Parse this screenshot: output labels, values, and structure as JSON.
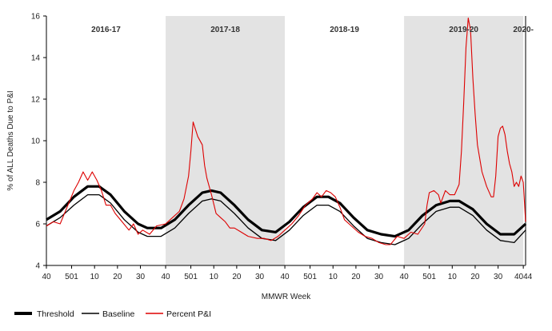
{
  "chart_data": {
    "type": "line",
    "xlabel": "MMWR Week",
    "ylabel": "% of ALL Deaths Due to P&I",
    "ylim": [
      4,
      16
    ],
    "yticks": [
      4,
      6,
      8,
      10,
      12,
      14,
      16
    ],
    "x_range_weeks": [
      0,
      209
    ],
    "season_labels": [
      {
        "label": "2016-17",
        "center_week": 26
      },
      {
        "label": "2017-18",
        "center_week": 78
      },
      {
        "label": "2018-19",
        "center_week": 130
      },
      {
        "label": "2019-20",
        "center_week": 182
      },
      {
        "label": "2020-",
        "center_week": 208
      }
    ],
    "shaded_weeks": [
      [
        52,
        104
      ],
      [
        156,
        208
      ]
    ],
    "xticks": [
      {
        "week": 0,
        "label": "40"
      },
      {
        "week": 11,
        "label": "501"
      },
      {
        "week": 21,
        "label": "10"
      },
      {
        "week": 31,
        "label": "20"
      },
      {
        "week": 41,
        "label": "30"
      },
      {
        "week": 52,
        "label": "40"
      },
      {
        "week": 63,
        "label": "501"
      },
      {
        "week": 73,
        "label": "10"
      },
      {
        "week": 83,
        "label": "20"
      },
      {
        "week": 93,
        "label": "30"
      },
      {
        "week": 104,
        "label": "40"
      },
      {
        "week": 115,
        "label": "501"
      },
      {
        "week": 125,
        "label": "10"
      },
      {
        "week": 135,
        "label": "20"
      },
      {
        "week": 145,
        "label": "30"
      },
      {
        "week": 156,
        "label": "40"
      },
      {
        "week": 167,
        "label": "501"
      },
      {
        "week": 177,
        "label": "10"
      },
      {
        "week": 187,
        "label": "20"
      },
      {
        "week": 197,
        "label": "30"
      },
      {
        "week": 208,
        "label": "4044"
      }
    ],
    "series": [
      {
        "name": "Threshold",
        "color": "#000000",
        "points": [
          [
            0,
            6.2
          ],
          [
            6,
            6.6
          ],
          [
            12,
            7.3
          ],
          [
            18,
            7.8
          ],
          [
            23,
            7.8
          ],
          [
            28,
            7.4
          ],
          [
            34,
            6.6
          ],
          [
            40,
            6.0
          ],
          [
            44,
            5.8
          ],
          [
            50,
            5.8
          ],
          [
            56,
            6.2
          ],
          [
            62,
            6.9
          ],
          [
            68,
            7.5
          ],
          [
            72,
            7.6
          ],
          [
            76,
            7.5
          ],
          [
            82,
            6.9
          ],
          [
            88,
            6.2
          ],
          [
            94,
            5.7
          ],
          [
            100,
            5.6
          ],
          [
            106,
            6.1
          ],
          [
            112,
            6.8
          ],
          [
            118,
            7.3
          ],
          [
            123,
            7.3
          ],
          [
            128,
            7.0
          ],
          [
            134,
            6.3
          ],
          [
            140,
            5.7
          ],
          [
            146,
            5.5
          ],
          [
            152,
            5.4
          ],
          [
            158,
            5.7
          ],
          [
            164,
            6.4
          ],
          [
            170,
            6.9
          ],
          [
            176,
            7.1
          ],
          [
            180,
            7.1
          ],
          [
            186,
            6.7
          ],
          [
            192,
            6.0
          ],
          [
            198,
            5.5
          ],
          [
            204,
            5.5
          ],
          [
            209,
            6.0
          ]
        ]
      },
      {
        "name": "Baseline",
        "color": "#000000",
        "points": [
          [
            0,
            5.9
          ],
          [
            6,
            6.3
          ],
          [
            12,
            6.9
          ],
          [
            18,
            7.4
          ],
          [
            23,
            7.4
          ],
          [
            28,
            7.0
          ],
          [
            34,
            6.2
          ],
          [
            40,
            5.6
          ],
          [
            44,
            5.4
          ],
          [
            50,
            5.4
          ],
          [
            56,
            5.8
          ],
          [
            62,
            6.5
          ],
          [
            68,
            7.1
          ],
          [
            72,
            7.2
          ],
          [
            76,
            7.1
          ],
          [
            82,
            6.5
          ],
          [
            88,
            5.8
          ],
          [
            94,
            5.3
          ],
          [
            100,
            5.2
          ],
          [
            106,
            5.7
          ],
          [
            112,
            6.4
          ],
          [
            118,
            6.9
          ],
          [
            123,
            6.9
          ],
          [
            128,
            6.6
          ],
          [
            134,
            5.9
          ],
          [
            140,
            5.3
          ],
          [
            146,
            5.1
          ],
          [
            152,
            5.0
          ],
          [
            158,
            5.3
          ],
          [
            164,
            6.0
          ],
          [
            170,
            6.6
          ],
          [
            176,
            6.8
          ],
          [
            180,
            6.8
          ],
          [
            186,
            6.4
          ],
          [
            192,
            5.7
          ],
          [
            198,
            5.2
          ],
          [
            204,
            5.1
          ],
          [
            209,
            5.7
          ]
        ]
      },
      {
        "name": "Percent P&I",
        "color": "#dd0000",
        "points": [
          [
            0,
            5.9
          ],
          [
            3,
            6.1
          ],
          [
            6,
            6.0
          ],
          [
            9,
            6.8
          ],
          [
            12,
            7.6
          ],
          [
            14,
            8.0
          ],
          [
            16,
            8.5
          ],
          [
            18,
            8.1
          ],
          [
            20,
            8.5
          ],
          [
            22,
            8.1
          ],
          [
            24,
            7.6
          ],
          [
            26,
            6.9
          ],
          [
            28,
            6.9
          ],
          [
            30,
            6.5
          ],
          [
            33,
            6.1
          ],
          [
            36,
            5.7
          ],
          [
            38,
            6.0
          ],
          [
            40,
            5.5
          ],
          [
            42,
            5.7
          ],
          [
            45,
            5.5
          ],
          [
            48,
            5.9
          ],
          [
            52,
            6.0
          ],
          [
            55,
            6.3
          ],
          [
            58,
            6.6
          ],
          [
            60,
            7.2
          ],
          [
            62,
            8.3
          ],
          [
            63,
            9.5
          ],
          [
            64,
            10.9
          ],
          [
            66,
            10.2
          ],
          [
            68,
            9.8
          ],
          [
            69,
            8.8
          ],
          [
            70,
            8.2
          ],
          [
            72,
            7.4
          ],
          [
            74,
            6.5
          ],
          [
            76,
            6.3
          ],
          [
            78,
            6.1
          ],
          [
            80,
            5.8
          ],
          [
            82,
            5.8
          ],
          [
            85,
            5.6
          ],
          [
            88,
            5.4
          ],
          [
            92,
            5.3
          ],
          [
            95,
            5.3
          ],
          [
            98,
            5.2
          ],
          [
            101,
            5.4
          ],
          [
            104,
            5.7
          ],
          [
            107,
            6.0
          ],
          [
            110,
            6.4
          ],
          [
            113,
            6.9
          ],
          [
            116,
            7.2
          ],
          [
            118,
            7.5
          ],
          [
            120,
            7.3
          ],
          [
            122,
            7.6
          ],
          [
            124,
            7.5
          ],
          [
            126,
            7.3
          ],
          [
            128,
            6.8
          ],
          [
            130,
            6.2
          ],
          [
            133,
            5.9
          ],
          [
            136,
            5.6
          ],
          [
            139,
            5.4
          ],
          [
            142,
            5.3
          ],
          [
            145,
            5.1
          ],
          [
            148,
            5.0
          ],
          [
            150,
            5.0
          ],
          [
            153,
            5.4
          ],
          [
            156,
            5.3
          ],
          [
            159,
            5.6
          ],
          [
            162,
            5.5
          ],
          [
            165,
            6.0
          ],
          [
            166,
            6.9
          ],
          [
            167,
            7.5
          ],
          [
            169,
            7.6
          ],
          [
            171,
            7.4
          ],
          [
            172,
            7.0
          ],
          [
            174,
            7.6
          ],
          [
            176,
            7.4
          ],
          [
            178,
            7.4
          ],
          [
            180,
            7.9
          ],
          [
            181,
            9.5
          ],
          [
            182,
            11.8
          ],
          [
            183,
            14.5
          ],
          [
            184,
            15.9
          ],
          [
            185,
            15.3
          ],
          [
            186,
            13.0
          ],
          [
            187,
            11.3
          ],
          [
            188,
            9.8
          ],
          [
            190,
            8.5
          ],
          [
            192,
            7.8
          ],
          [
            194,
            7.3
          ],
          [
            195,
            7.3
          ],
          [
            196,
            8.3
          ],
          [
            197,
            10.2
          ],
          [
            198,
            10.6
          ],
          [
            199,
            10.7
          ],
          [
            200,
            10.3
          ],
          [
            201,
            9.5
          ],
          [
            202,
            8.9
          ],
          [
            203,
            8.5
          ],
          [
            204,
            7.8
          ],
          [
            205,
            8.0
          ],
          [
            206,
            7.8
          ],
          [
            207,
            8.3
          ],
          [
            208,
            8.0
          ],
          [
            209,
            6.1
          ]
        ]
      }
    ],
    "legend": [
      {
        "label": "Threshold",
        "style": "thick"
      },
      {
        "label": "Baseline",
        "style": "thin"
      },
      {
        "label": "Percent P&I",
        "style": "red"
      }
    ]
  }
}
